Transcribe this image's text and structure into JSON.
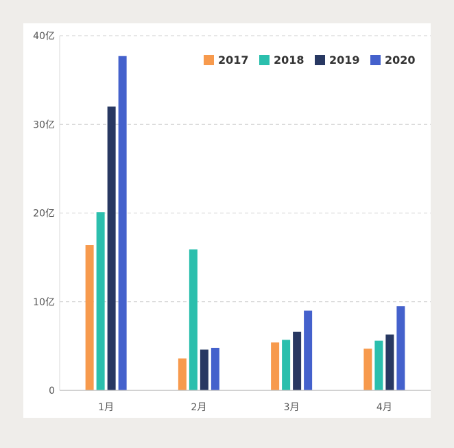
{
  "chart_data": {
    "type": "bar",
    "title": "",
    "xlabel": "",
    "ylabel": "",
    "categories": [
      "1月",
      "2月",
      "3月",
      "4月"
    ],
    "y_ticks": [
      "0",
      "10亿",
      "20亿",
      "30亿",
      "40亿"
    ],
    "ylim": [
      0,
      40
    ],
    "unit": "亿",
    "grid": true,
    "legend_position": "top-right",
    "series": [
      {
        "name": "2017",
        "color": "#f79a4d",
        "values": [
          16.4,
          3.6,
          5.4,
          4.7
        ]
      },
      {
        "name": "2018",
        "color": "#2bbfad",
        "values": [
          20.1,
          15.9,
          5.7,
          5.6
        ]
      },
      {
        "name": "2019",
        "color": "#283862",
        "values": [
          32.0,
          4.6,
          6.6,
          6.3
        ]
      },
      {
        "name": "2020",
        "color": "#4461cc",
        "values": [
          37.7,
          4.8,
          9.0,
          9.5
        ]
      }
    ]
  }
}
